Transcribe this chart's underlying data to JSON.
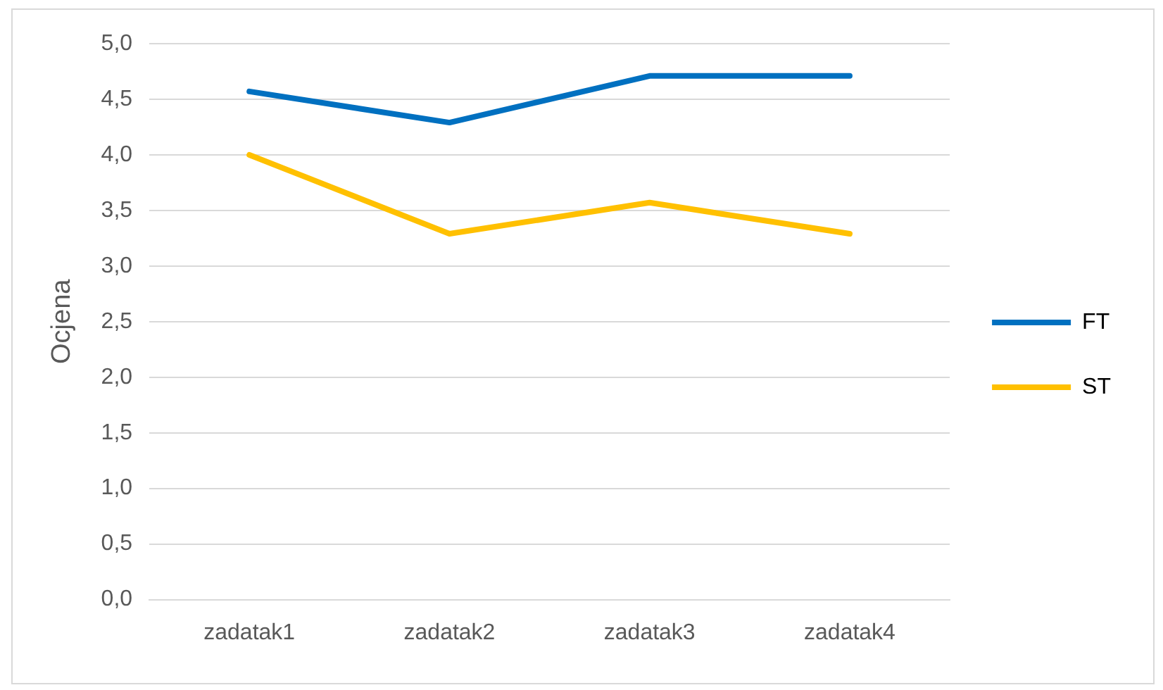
{
  "chart_data": {
    "type": "line",
    "ylabel": "Ocjena",
    "categories": [
      "zadatak1",
      "zadatak2",
      "zadatak3",
      "zadatak4"
    ],
    "series": [
      {
        "name": "FT",
        "color": "#0070c0",
        "values": [
          4.57,
          4.29,
          4.71,
          4.71
        ]
      },
      {
        "name": "ST",
        "color": "#ffc000",
        "values": [
          4.0,
          3.29,
          3.57,
          3.29
        ]
      }
    ],
    "ylim": [
      0,
      5
    ],
    "yticks": [
      {
        "value": 0,
        "label": "0,0"
      },
      {
        "value": 0.5,
        "label": "0,5"
      },
      {
        "value": 1,
        "label": "1,0"
      },
      {
        "value": 1.5,
        "label": "1,5"
      },
      {
        "value": 2,
        "label": "2,0"
      },
      {
        "value": 2.5,
        "label": "2,5"
      },
      {
        "value": 3,
        "label": "3,0"
      },
      {
        "value": 3.5,
        "label": "3,5"
      },
      {
        "value": 4,
        "label": "4,0"
      },
      {
        "value": 4.5,
        "label": "4,5"
      },
      {
        "value": 5,
        "label": "5,0"
      }
    ],
    "grid": "y",
    "legend": "right",
    "marker": "none",
    "line_style": "solid"
  }
}
